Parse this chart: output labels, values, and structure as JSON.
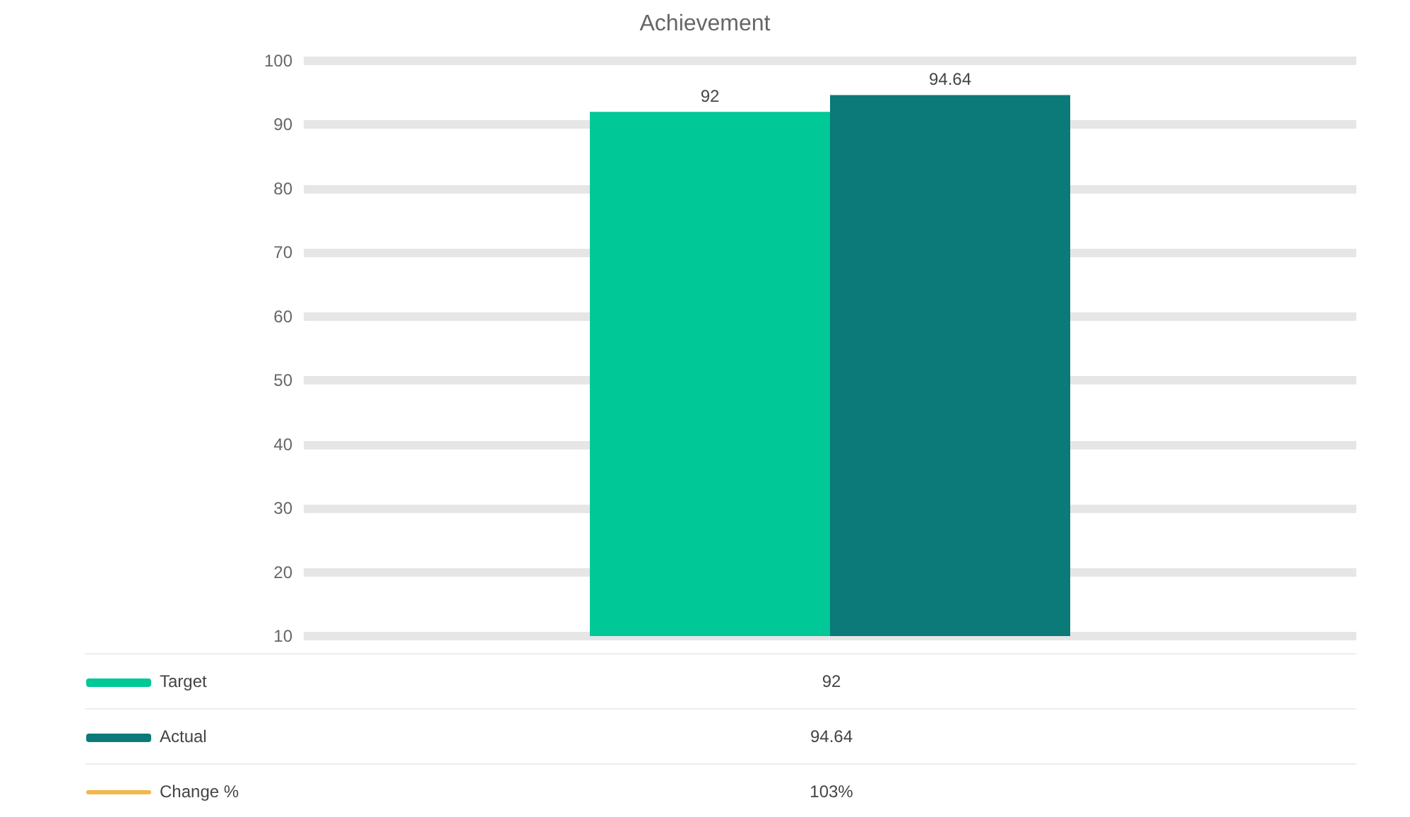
{
  "chart_data": {
    "type": "bar",
    "title": "Achievement",
    "categories": [
      null
    ],
    "series": [
      {
        "name": "Target",
        "color": "#00c896",
        "values": [
          92
        ],
        "value_labels": [
          "92"
        ]
      },
      {
        "name": "Actual",
        "color": "#0b7a78",
        "values": [
          94.64
        ],
        "value_labels": [
          "94.64"
        ]
      },
      {
        "name": "Change %",
        "type": "line",
        "color": "#f2b84b",
        "values": [
          null
        ],
        "value_labels": [
          "103%"
        ]
      }
    ],
    "ylim": [
      10,
      100
    ],
    "yticks": [
      100,
      90,
      80,
      70,
      60,
      50,
      40,
      30,
      20,
      10
    ],
    "grid": "y",
    "legend": "bottom left",
    "tick_labels": "y"
  }
}
